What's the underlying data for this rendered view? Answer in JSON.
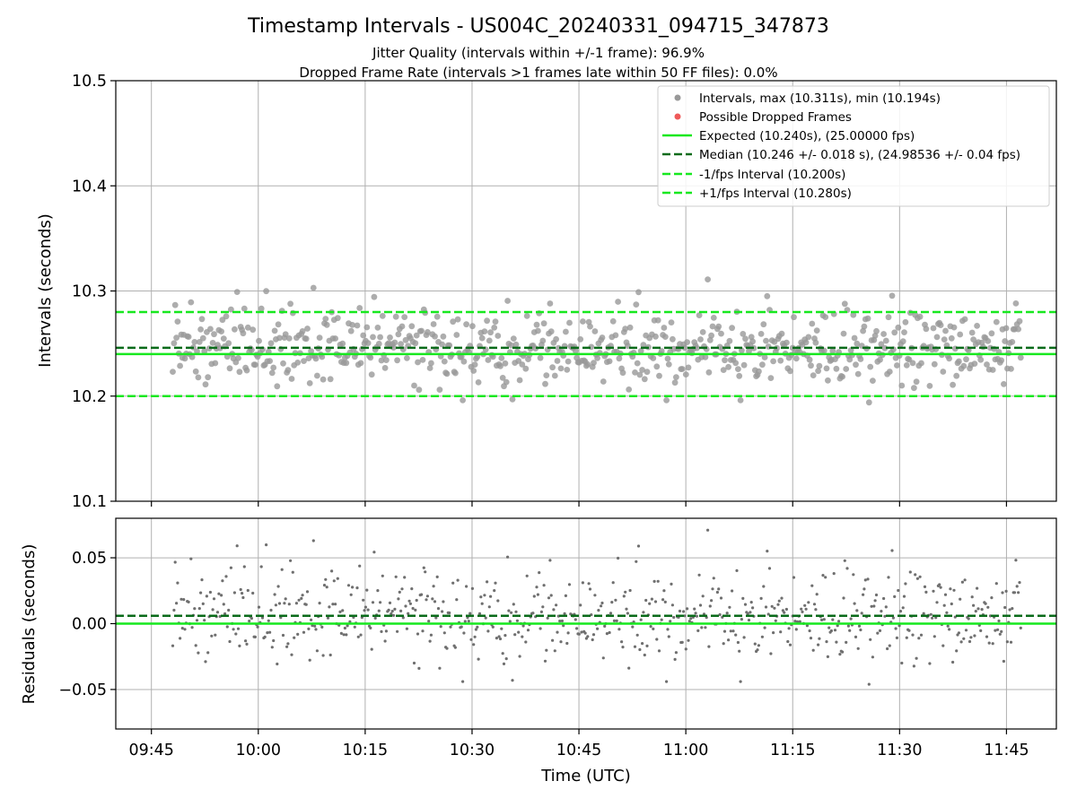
{
  "chart_data": [
    {
      "type": "scatter",
      "title": "Timestamp Intervals - US004C_20240331_094715_347873",
      "subtitle_lines": [
        "Jitter Quality (intervals within +/-1 frame): 96.9%",
        "Dropped Frame Rate (intervals >1 frames late within 50 FF files): 0.0%"
      ],
      "xlabel": "",
      "ylabel": "Intervals (seconds)",
      "xlim": [
        "09:40",
        "11:52"
      ],
      "ylim": [
        10.1,
        10.5
      ],
      "yticks": [
        "10.1",
        "10.2",
        "10.3",
        "10.4",
        "10.5"
      ],
      "grid": true,
      "legend_position": "top-right",
      "legend": [
        "Intervals, max (10.311s), min (10.194s)",
        "Possible Dropped Frames",
        "Expected (10.240s), (25.00000 fps)",
        "Median (10.246 +/- 0.018 s), (24.98536 +/- 0.04 fps)",
        "-1/fps Interval (10.200s)",
        "+1/fps Interval (10.280s)"
      ],
      "reference_lines": {
        "expected": 10.24,
        "median": 10.246,
        "minus_one_fps": 10.2,
        "plus_one_fps": 10.28
      },
      "series": [
        {
          "name": "Intervals, max (10.311s), min (10.194s)",
          "sampling": "approximate: ~700 points evenly spaced in time, 09:48 to 11:47",
          "time_start": "09:48",
          "time_end": "11:47",
          "count": 700,
          "max": 10.311,
          "min": 10.194
        },
        {
          "name": "Possible Dropped Frames",
          "values": []
        }
      ]
    },
    {
      "type": "scatter",
      "xlabel": "Time (UTC)",
      "ylabel": "Residuals (seconds)",
      "xlim": [
        "09:40",
        "11:52"
      ],
      "ylim": [
        -0.08,
        0.08
      ],
      "yticks": [
        "−0.05",
        "0.00",
        "0.05"
      ],
      "xticks": [
        "09:45",
        "10:00",
        "10:15",
        "10:30",
        "10:45",
        "11:00",
        "11:15",
        "11:30",
        "11:45"
      ],
      "grid": true,
      "reference_lines": {
        "zero": 0.0,
        "median_offset": 0.006
      }
    }
  ],
  "colors": {
    "points": "#999999",
    "residual_points": "#6f6f6f",
    "dropped": "#ef5a5a",
    "expected": "#17e81f",
    "median": "#0a6b1a",
    "grid": "#b0b0b0"
  }
}
